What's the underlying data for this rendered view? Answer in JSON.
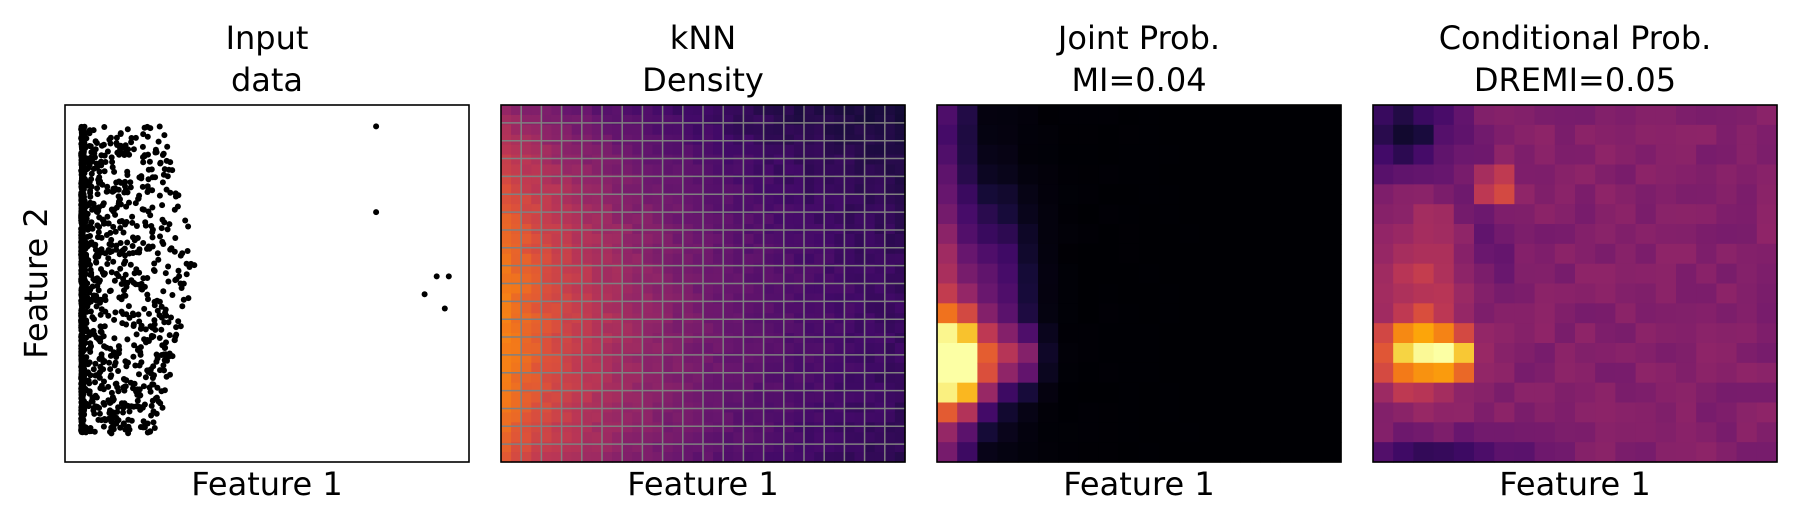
{
  "chart_data": [
    {
      "type": "scatter",
      "title_lines": [
        "Input",
        "data"
      ],
      "xlabel": "Feature 1",
      "ylabel": "Feature 2",
      "ticks": "none",
      "marker_color": "#000000",
      "description": "dense band of points near x≈0 spreading right; sparse outliers",
      "outliers": [
        [
          0.77,
          0.94
        ],
        [
          0.77,
          0.7
        ],
        [
          0.92,
          0.52
        ],
        [
          0.95,
          0.52
        ],
        [
          0.89,
          0.47
        ],
        [
          0.94,
          0.43
        ]
      ]
    },
    {
      "type": "heatmap",
      "title_lines": [
        "kNN",
        "Density"
      ],
      "xlabel": "Feature 1",
      "ylabel": "",
      "ticks": "none",
      "grid": true,
      "grid_color": "#808080",
      "colormap": "inferno"
    },
    {
      "type": "heatmap",
      "title_lines": [
        "Joint Prob.",
        "MI=0.04"
      ],
      "xlabel": "Feature 1",
      "ylabel": "",
      "ticks": "none",
      "grid": false,
      "colormap": "inferno"
    },
    {
      "type": "heatmap",
      "title_lines": [
        "Conditional Prob.",
        "DREMI=0.05"
      ],
      "xlabel": "Feature 1",
      "ylabel": "",
      "ticks": "none",
      "grid": false,
      "colormap": "inferno"
    }
  ]
}
